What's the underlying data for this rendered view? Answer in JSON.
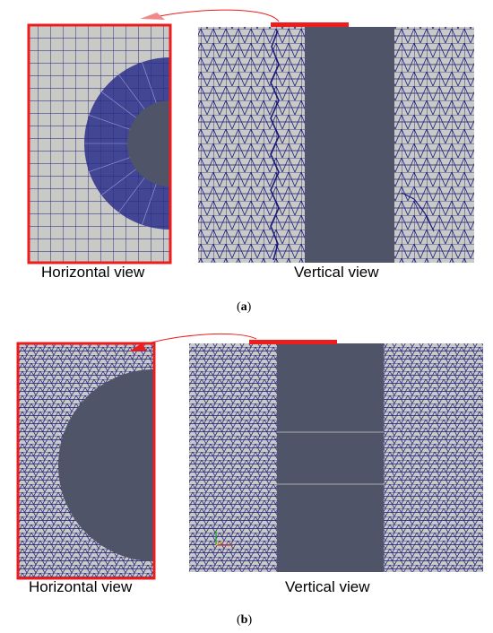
{
  "figure": {
    "panel_a": {
      "caption_letter": "a",
      "horizontal_label": "Horizontal view",
      "vertical_label": "Vertical view"
    },
    "panel_b": {
      "caption_letter": "b",
      "horizontal_label": "Horizontal view",
      "vertical_label": "Vertical view"
    }
  },
  "colors": {
    "mesh_bg": "#c9c9c6",
    "mesh_line": "#1a1a7a",
    "solid": "#4f5468",
    "highlight": "#ee1c1c"
  }
}
